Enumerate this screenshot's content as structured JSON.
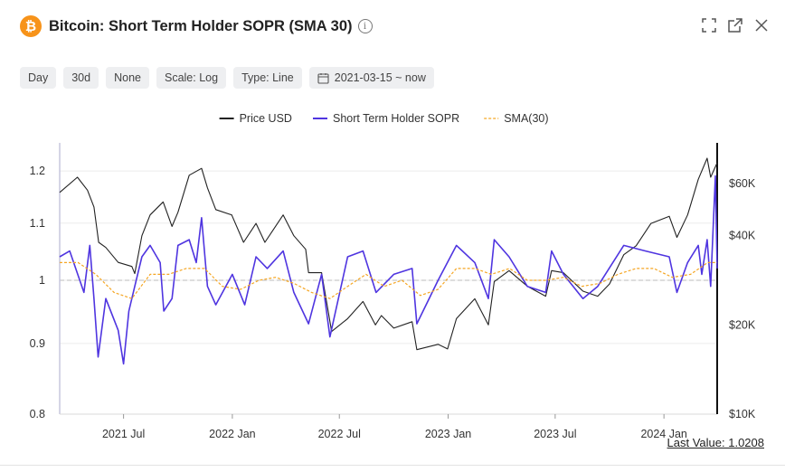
{
  "header": {
    "logo_glyph": "₿",
    "title": "Bitcoin: Short Term Holder SOPR (SMA 30)",
    "info_icon": "info-icon"
  },
  "top_icons": [
    "fullscreen-icon",
    "open-external-icon",
    "close-icon"
  ],
  "toolbar": {
    "resolution": "Day",
    "window": "30d",
    "smoothing": "None",
    "scale": "Scale: Log",
    "type": "Type: Line",
    "date_range": "2021-03-15 ~ now"
  },
  "footer": {
    "last_value": "Last Value: 1.0208"
  },
  "chart_data": {
    "type": "line",
    "title": "",
    "xlabel": "",
    "ylabel": "",
    "legend_position": "top-center",
    "grid": true,
    "x_range": [
      "2021-03-15",
      "2024-03-31"
    ],
    "x_ticks": [
      {
        "date": "2021-07-01",
        "label": "2021 Jul"
      },
      {
        "date": "2022-01-01",
        "label": "2022 Jan"
      },
      {
        "date": "2022-07-01",
        "label": "2022 Jul"
      },
      {
        "date": "2023-01-01",
        "label": "2023 Jan"
      },
      {
        "date": "2023-07-01",
        "label": "2023 Jul"
      },
      {
        "date": "2024-01-01",
        "label": "2024 Jan"
      }
    ],
    "y_left": {
      "scale": "log",
      "range": [
        0.8,
        1.25
      ],
      "ticks": [
        0.8,
        0.9,
        1,
        1.1,
        1.2
      ],
      "tick_labels": [
        "0.8",
        "0.9",
        "1",
        "1.1",
        "1.2"
      ],
      "reference_line": 1
    },
    "y_right": {
      "scale": "log",
      "range": [
        10000,
        80000
      ],
      "ticks": [
        10000,
        20000,
        40000,
        60000
      ],
      "tick_labels": [
        "$10K",
        "$20K",
        "$40K",
        "$60K"
      ]
    },
    "series": [
      {
        "name": "Price USD",
        "axis": "right",
        "color": "#222222",
        "style": "solid",
        "points": [
          [
            "2021-03-15",
            56000
          ],
          [
            "2021-04-14",
            63000
          ],
          [
            "2021-05-01",
            57000
          ],
          [
            "2021-05-12",
            50000
          ],
          [
            "2021-05-20",
            38000
          ],
          [
            "2021-06-01",
            36500
          ],
          [
            "2021-06-22",
            32500
          ],
          [
            "2021-07-15",
            31500
          ],
          [
            "2021-07-20",
            29800
          ],
          [
            "2021-08-01",
            40000
          ],
          [
            "2021-08-15",
            47000
          ],
          [
            "2021-09-06",
            52000
          ],
          [
            "2021-09-21",
            43000
          ],
          [
            "2021-10-01",
            48000
          ],
          [
            "2021-10-20",
            64000
          ],
          [
            "2021-11-10",
            67500
          ],
          [
            "2021-11-20",
            58000
          ],
          [
            "2021-12-04",
            49000
          ],
          [
            "2021-12-31",
            47000
          ],
          [
            "2022-01-20",
            38000
          ],
          [
            "2022-02-10",
            44000
          ],
          [
            "2022-02-25",
            38000
          ],
          [
            "2022-03-28",
            47000
          ],
          [
            "2022-04-15",
            40000
          ],
          [
            "2022-05-05",
            36000
          ],
          [
            "2022-05-10",
            30000
          ],
          [
            "2022-06-01",
            30000
          ],
          [
            "2022-06-18",
            19000
          ],
          [
            "2022-07-15",
            21000
          ],
          [
            "2022-08-10",
            24000
          ],
          [
            "2022-08-31",
            20000
          ],
          [
            "2022-09-10",
            21500
          ],
          [
            "2022-10-01",
            19500
          ],
          [
            "2022-11-01",
            20500
          ],
          [
            "2022-11-09",
            16500
          ],
          [
            "2022-12-15",
            17200
          ],
          [
            "2022-12-31",
            16600
          ],
          [
            "2023-01-15",
            21000
          ],
          [
            "2023-02-15",
            24500
          ],
          [
            "2023-03-10",
            20000
          ],
          [
            "2023-03-20",
            28000
          ],
          [
            "2023-04-14",
            30500
          ],
          [
            "2023-05-15",
            27000
          ],
          [
            "2023-06-15",
            25000
          ],
          [
            "2023-06-25",
            30500
          ],
          [
            "2023-07-15",
            30000
          ],
          [
            "2023-08-17",
            26000
          ],
          [
            "2023-09-11",
            25000
          ],
          [
            "2023-10-01",
            27500
          ],
          [
            "2023-10-25",
            34500
          ],
          [
            "2023-11-15",
            37000
          ],
          [
            "2023-12-10",
            44000
          ],
          [
            "2024-01-10",
            46500
          ],
          [
            "2024-01-23",
            39500
          ],
          [
            "2024-02-10",
            47000
          ],
          [
            "2024-02-28",
            62000
          ],
          [
            "2024-03-14",
            73000
          ],
          [
            "2024-03-20",
            63000
          ],
          [
            "2024-03-31",
            70500
          ]
        ]
      },
      {
        "name": "Short Term Holder SOPR",
        "axis": "left",
        "color": "#4f35e0",
        "style": "solid",
        "points": [
          [
            "2021-03-15",
            1.04
          ],
          [
            "2021-04-01",
            1.05
          ],
          [
            "2021-04-25",
            0.98
          ],
          [
            "2021-05-05",
            1.06
          ],
          [
            "2021-05-12",
            0.97
          ],
          [
            "2021-05-19",
            0.88
          ],
          [
            "2021-06-01",
            0.97
          ],
          [
            "2021-06-22",
            0.92
          ],
          [
            "2021-07-01",
            0.87
          ],
          [
            "2021-07-10",
            0.95
          ],
          [
            "2021-07-20",
            0.99
          ],
          [
            "2021-08-01",
            1.04
          ],
          [
            "2021-08-15",
            1.06
          ],
          [
            "2021-09-01",
            1.03
          ],
          [
            "2021-09-07",
            0.95
          ],
          [
            "2021-09-21",
            0.97
          ],
          [
            "2021-10-01",
            1.06
          ],
          [
            "2021-10-20",
            1.07
          ],
          [
            "2021-11-01",
            1.03
          ],
          [
            "2021-11-10",
            1.11
          ],
          [
            "2021-11-20",
            0.99
          ],
          [
            "2021-12-04",
            0.96
          ],
          [
            "2022-01-01",
            1.01
          ],
          [
            "2022-01-22",
            0.96
          ],
          [
            "2022-02-10",
            1.04
          ],
          [
            "2022-03-01",
            1.02
          ],
          [
            "2022-03-28",
            1.05
          ],
          [
            "2022-04-15",
            0.98
          ],
          [
            "2022-05-10",
            0.93
          ],
          [
            "2022-06-01",
            1.01
          ],
          [
            "2022-06-15",
            0.91
          ],
          [
            "2022-07-15",
            1.04
          ],
          [
            "2022-08-10",
            1.05
          ],
          [
            "2022-09-01",
            0.98
          ],
          [
            "2022-10-01",
            1.01
          ],
          [
            "2022-11-01",
            1.02
          ],
          [
            "2022-11-09",
            0.93
          ],
          [
            "2022-12-15",
            1.0
          ],
          [
            "2023-01-15",
            1.06
          ],
          [
            "2023-02-15",
            1.03
          ],
          [
            "2023-03-10",
            0.97
          ],
          [
            "2023-03-20",
            1.07
          ],
          [
            "2023-04-14",
            1.04
          ],
          [
            "2023-05-15",
            0.99
          ],
          [
            "2023-06-15",
            0.98
          ],
          [
            "2023-06-25",
            1.05
          ],
          [
            "2023-07-15",
            1.01
          ],
          [
            "2023-08-17",
            0.97
          ],
          [
            "2023-09-11",
            0.99
          ],
          [
            "2023-10-25",
            1.06
          ],
          [
            "2023-12-01",
            1.05
          ],
          [
            "2024-01-10",
            1.04
          ],
          [
            "2024-01-23",
            0.98
          ],
          [
            "2024-02-10",
            1.03
          ],
          [
            "2024-02-28",
            1.06
          ],
          [
            "2024-03-05",
            1.01
          ],
          [
            "2024-03-14",
            1.07
          ],
          [
            "2024-03-20",
            0.99
          ],
          [
            "2024-03-28",
            1.19
          ],
          [
            "2024-03-31",
            1.02
          ]
        ]
      },
      {
        "name": "SMA(30)",
        "axis": "left",
        "color": "#f5a623",
        "style": "dashed",
        "points": [
          [
            "2021-03-15",
            1.03
          ],
          [
            "2021-04-15",
            1.03
          ],
          [
            "2021-05-15",
            1.01
          ],
          [
            "2021-06-15",
            0.98
          ],
          [
            "2021-07-15",
            0.97
          ],
          [
            "2021-08-15",
            1.01
          ],
          [
            "2021-09-15",
            1.01
          ],
          [
            "2021-10-15",
            1.02
          ],
          [
            "2021-11-15",
            1.02
          ],
          [
            "2021-12-15",
            0.99
          ],
          [
            "2022-01-15",
            0.985
          ],
          [
            "2022-02-15",
            1.0
          ],
          [
            "2022-03-15",
            1.005
          ],
          [
            "2022-04-15",
            0.995
          ],
          [
            "2022-05-15",
            0.98
          ],
          [
            "2022-06-15",
            0.97
          ],
          [
            "2022-07-15",
            0.99
          ],
          [
            "2022-08-15",
            1.01
          ],
          [
            "2022-09-15",
            0.99
          ],
          [
            "2022-10-15",
            1.0
          ],
          [
            "2022-11-15",
            0.975
          ],
          [
            "2022-12-15",
            0.985
          ],
          [
            "2023-01-15",
            1.02
          ],
          [
            "2023-02-15",
            1.02
          ],
          [
            "2023-03-15",
            1.01
          ],
          [
            "2023-04-15",
            1.02
          ],
          [
            "2023-05-15",
            1.0
          ],
          [
            "2023-06-15",
            1.0
          ],
          [
            "2023-07-15",
            1.005
          ],
          [
            "2023-08-15",
            0.99
          ],
          [
            "2023-09-15",
            0.995
          ],
          [
            "2023-10-15",
            1.01
          ],
          [
            "2023-11-15",
            1.02
          ],
          [
            "2023-12-15",
            1.02
          ],
          [
            "2024-01-15",
            1.005
          ],
          [
            "2024-02-15",
            1.01
          ],
          [
            "2024-03-15",
            1.03
          ],
          [
            "2024-03-31",
            1.03
          ]
        ]
      }
    ]
  }
}
